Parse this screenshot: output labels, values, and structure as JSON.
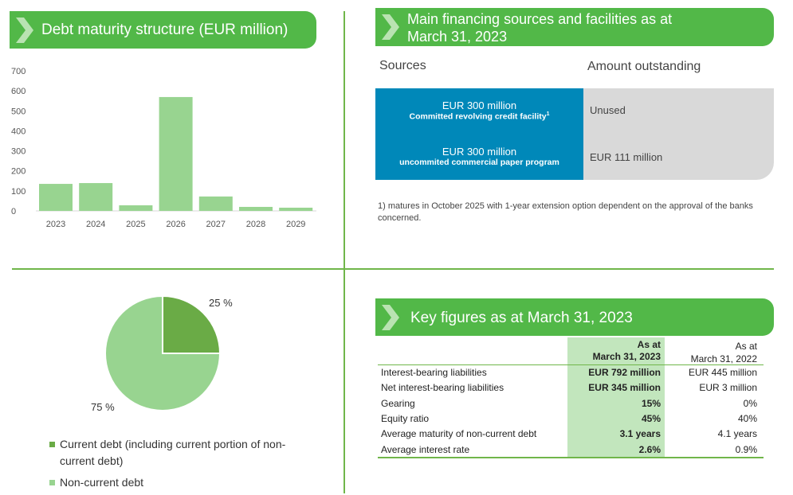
{
  "colors": {
    "header": "#52b848",
    "bar": "#98d490",
    "pie_current": "#6aab46",
    "pie_noncurrent": "#98d490",
    "source_blue": "#0088b9",
    "highlight": "#c2e6bd"
  },
  "panels": {
    "maturity": {
      "title": "Debt maturity structure (EUR million)"
    },
    "sources": {
      "title_line1": "Main financing sources and facilities as at",
      "title_line2": "March 31, 2023",
      "col_sources": "Sources",
      "col_amount": "Amount outstanding",
      "rows": [
        {
          "amount": "EUR 300 million",
          "desc": "Committed revolving credit facility",
          "sup": "1",
          "outstanding": "Unused"
        },
        {
          "amount": "EUR 300 million",
          "desc": "uncommited commercial paper program",
          "sup": "",
          "outstanding": "EUR 111 million"
        }
      ],
      "footnote": "1) matures in October 2025 with 1-year extension option dependent on the approval of the banks concerned."
    },
    "key": {
      "title": "Key figures as at March 31, 2023",
      "col1_line1": "As at",
      "col1_line2": "March 31, 2023",
      "col2_line1": "As at",
      "col2_line2": "March 31, 2022",
      "rows": [
        {
          "label": "Interest-bearing liabilities",
          "v2023": "EUR 792 million",
          "v2022": "EUR 445 million"
        },
        {
          "label": "Net interest-bearing liabilities",
          "v2023": "EUR 345 million",
          "v2022": "EUR 3 million"
        },
        {
          "label": "Gearing",
          "v2023": "15%",
          "v2022": "0%"
        },
        {
          "label": "Equity ratio",
          "v2023": "45%",
          "v2022": "40%"
        },
        {
          "label": "Average maturity of non-current debt",
          "v2023": "3.1 years",
          "v2022": "4.1 years"
        },
        {
          "label": "Average interest rate",
          "v2023": "2.6%",
          "v2022": "0.9%"
        }
      ]
    }
  },
  "chart_data": [
    {
      "type": "bar",
      "title": "Debt maturity structure (EUR million)",
      "categories": [
        "2023",
        "2024",
        "2025",
        "2026",
        "2027",
        "2028",
        "2029"
      ],
      "values": [
        135,
        139,
        28,
        569,
        72,
        20,
        16
      ],
      "ylim": [
        0,
        700
      ],
      "yticks": [
        "0",
        "100",
        "200",
        "300",
        "400",
        "500",
        "600",
        "700"
      ],
      "grid": false
    },
    {
      "type": "pie",
      "slices": [
        {
          "name": "Current debt (including current portion of non-current debt)",
          "value": 25,
          "label": "25 %"
        },
        {
          "name": "Non-current debt",
          "value": 75,
          "label": "75 %"
        }
      ],
      "legend": "bottom"
    }
  ]
}
